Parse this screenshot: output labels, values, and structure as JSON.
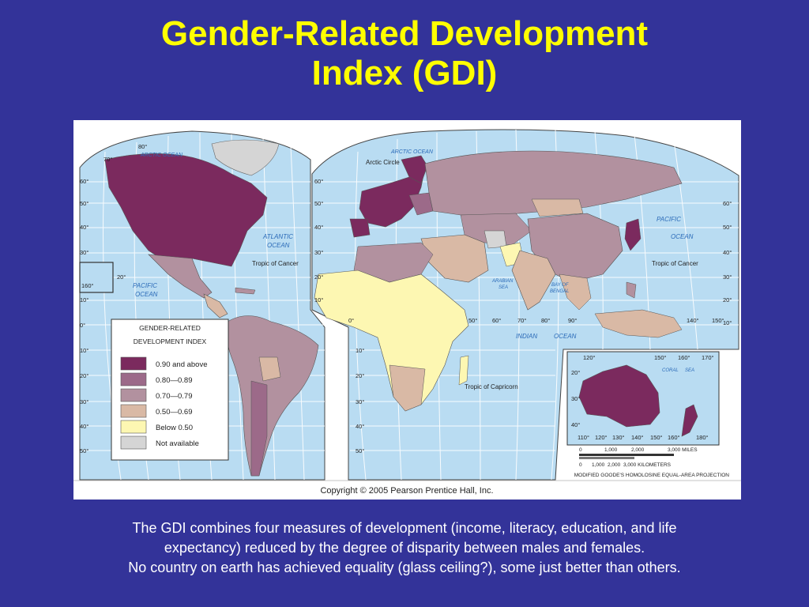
{
  "slide": {
    "title_line1": "Gender-Related Development",
    "title_line2": "Index (GDI)",
    "caption_line1": "The GDI combines four measures of development (income, literacy, education, and life",
    "caption_line2": "expectancy) reduced by the degree of disparity between males and females.",
    "caption_line3": "No country on earth has achieved equality (glass ceiling?), some just better than others."
  },
  "map": {
    "copyright": "Copyright © 2005 Pearson Prentice Hall, Inc.",
    "projection": "MODIFIED GOODE'S HOMOLOSINE EQUAL-AREA PROJECTION",
    "oceans": {
      "arctic_left": "ARCTIC OCEAN",
      "arctic_right": "ARCTIC OCEAN",
      "atlantic_1": "ATLANTIC",
      "atlantic_2": "OCEAN",
      "pacific_left_1": "PACIFIC",
      "pacific_left_2": "OCEAN",
      "pacific_right_1": "PACIFIC",
      "pacific_right_2": "OCEAN",
      "indian": "INDIAN",
      "indian_2": "OCEAN",
      "arabian_1": "ARABIAN",
      "arabian_2": "SEA",
      "bengal_1": "BAY OF",
      "bengal_2": "BENGAL",
      "coral_1": "CORAL",
      "coral_2": "SEA"
    },
    "lines": {
      "arctic_circle": "Arctic Circle",
      "tropic_cancer_left": "Tropic of Cancer",
      "tropic_cancer_right": "Tropic of Cancer",
      "tropic_capricorn": "Tropic of Capricorn"
    },
    "lat_labels_left": [
      "80°",
      "70°",
      "60°",
      "50°",
      "40°",
      "30°",
      "20°",
      "160°",
      "10°",
      "0°",
      "10°",
      "20°",
      "30°",
      "40°",
      "50°"
    ],
    "lat_labels_mid": [
      "60°",
      "50°",
      "40°",
      "30°",
      "20°",
      "10°",
      "0°",
      "10°",
      "20°",
      "30°",
      "40°",
      "50°"
    ],
    "lat_labels_right": [
      "60°",
      "50°",
      "40°",
      "30°",
      "20°",
      "10°"
    ],
    "lon_labels": [
      "50°",
      "60°",
      "70°",
      "80°",
      "90°",
      "140°",
      "150°"
    ],
    "inset_lon_top": [
      "120°",
      "150°",
      "160°",
      "170°"
    ],
    "inset_lon_bottom": [
      "110°",
      "120°",
      "130°",
      "140°",
      "150°",
      "160°",
      "180°"
    ],
    "inset_lat": [
      "20°",
      "30°",
      "40°"
    ],
    "scale": {
      "miles": [
        "0",
        "1,000",
        "2,000",
        "3,000 MILES"
      ],
      "km": [
        "0",
        "1,000",
        "2,000",
        "3,000 KILOMETERS"
      ]
    },
    "legend": {
      "title_line1": "GENDER-RELATED",
      "title_line2": "DEVELOPMENT INDEX",
      "items": [
        {
          "label": "0.90 and above",
          "color": "#7b2a5e"
        },
        {
          "label": "0.80—0.89",
          "color": "#9c6a89"
        },
        {
          "label": "0.70—0.79",
          "color": "#b2919f"
        },
        {
          "label": "0.50—0.69",
          "color": "#d9b9a5"
        },
        {
          "label": "Below 0.50",
          "color": "#fdf7b2"
        },
        {
          "label": "Not available",
          "color": "#d5d5d5"
        }
      ]
    },
    "colors": {
      "ocean": "#b9dcf2",
      "grid": "#ffffff",
      "top_tier": "#7b2a5e",
      "high": "#9c6a89",
      "mid": "#b2919f",
      "low_mid": "#d9b9a5",
      "low": "#fdf7b2",
      "na": "#d5d5d5"
    }
  }
}
